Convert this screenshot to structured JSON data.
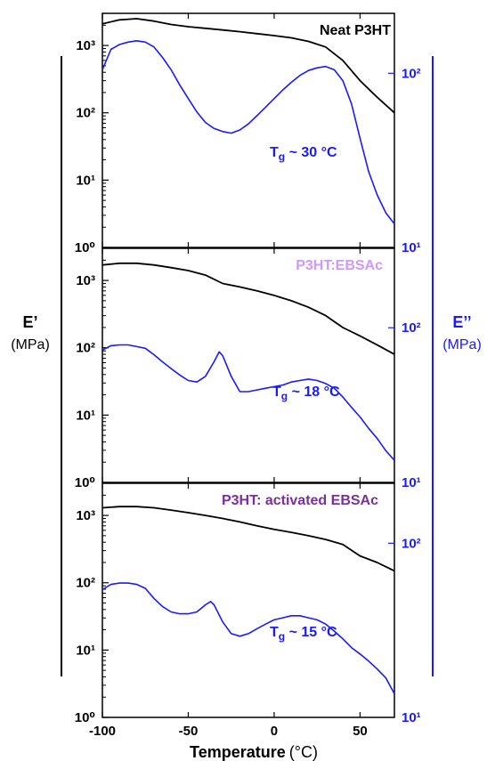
{
  "chart_data": {
    "type": "line",
    "xlabel": "Temperature",
    "xlabel_unit": "(°C)",
    "xlim": [
      -100,
      70
    ],
    "x_ticks": [
      "-100",
      "-50",
      "0",
      "50"
    ],
    "left_axis": {
      "label": "E’",
      "unit": "(MPa)",
      "scale": "log",
      "ylim": [
        1,
        3000
      ],
      "tick_labels": [
        "10⁰",
        "10¹",
        "10²",
        "10³"
      ]
    },
    "right_axis": {
      "label": "E’’",
      "unit": "(MPa)",
      "scale": "log",
      "tick_labels": [
        "10¹",
        "10²"
      ]
    },
    "colors": {
      "e_storage": "#000000",
      "e_loss": "#1a1aff",
      "title_neat": "#000000",
      "title_ebsac": "#cc99ff",
      "title_activated": "#7b2f9e"
    },
    "panels": [
      {
        "title": "Neat P3HT",
        "annotation": {
          "text": "T",
          "sub": "g",
          "rest": " ~ 30 °C"
        },
        "right_ylim": [
          10,
          200
        ],
        "series": [
          {
            "axis": "left",
            "x": [
              -100,
              -90,
              -80,
              -70,
              -60,
              -50,
              -40,
              -30,
              -20,
              -10,
              0,
              10,
              20,
              30,
              40,
              50,
              60,
              70
            ],
            "y": [
              2100,
              2400,
              2500,
              2300,
              2050,
              1900,
              1800,
              1700,
              1600,
              1500,
              1400,
              1300,
              1150,
              950,
              600,
              300,
              170,
              100
            ]
          },
          {
            "axis": "right",
            "x": [
              -100,
              -95,
              -90,
              -85,
              -80,
              -75,
              -70,
              -65,
              -60,
              -55,
              -50,
              -45,
              -40,
              -35,
              -30,
              -25,
              -20,
              -15,
              -10,
              -5,
              0,
              5,
              10,
              15,
              20,
              25,
              30,
              35,
              40,
              45,
              50,
              55,
              60,
              65,
              70
            ],
            "y": [
              105,
              140,
              150,
              155,
              158,
              155,
              145,
              125,
              105,
              85,
              70,
              58,
              50,
              46,
              44,
              43,
              45,
              49,
              55,
              62,
              70,
              79,
              88,
              97,
              104,
              108,
              110,
              105,
              90,
              65,
              40,
              25,
              18,
              14,
              12
            ]
          }
        ]
      },
      {
        "title": "P3HT:EBSAc",
        "annotation": {
          "text": "T",
          "sub": "g",
          "rest": " ~ 18 °C"
        },
        "right_ylim": [
          10,
          300
        ],
        "series": [
          {
            "axis": "left",
            "x": [
              -100,
              -90,
              -80,
              -70,
              -60,
              -50,
              -40,
              -30,
              -20,
              -10,
              0,
              10,
              20,
              30,
              40,
              50,
              60,
              70
            ],
            "y": [
              1700,
              1800,
              1800,
              1700,
              1550,
              1400,
              1200,
              900,
              800,
              700,
              600,
              500,
              400,
              300,
              200,
              150,
              110,
              80
            ]
          },
          {
            "axis": "right",
            "x": [
              -100,
              -95,
              -90,
              -85,
              -80,
              -75,
              -70,
              -65,
              -60,
              -55,
              -50,
              -45,
              -40,
              -35,
              -32,
              -30,
              -25,
              -20,
              -15,
              -10,
              -5,
              0,
              5,
              10,
              15,
              20,
              25,
              30,
              35,
              40,
              45,
              50,
              55,
              60,
              65,
              70
            ],
            "y": [
              70,
              75,
              76,
              76,
              74,
              72,
              65,
              58,
              52,
              47,
              43,
              42,
              46,
              58,
              68,
              64,
              46,
              36,
              36,
              37,
              38,
              39,
              40,
              42,
              43,
              44,
              43,
              41,
              38,
              33,
              28,
              24,
              20,
              17,
              14,
              12
            ]
          }
        ]
      },
      {
        "title": "P3HT: activated EBSAc",
        "annotation": {
          "text": "T",
          "sub": "g",
          "rest": " ~ 15 °C"
        },
        "right_ylim": [
          10,
          200
        ],
        "series": [
          {
            "axis": "left",
            "x": [
              -100,
              -90,
              -80,
              -70,
              -60,
              -50,
              -40,
              -30,
              -20,
              -10,
              0,
              10,
              20,
              30,
              40,
              50,
              60,
              70
            ],
            "y": [
              1300,
              1350,
              1350,
              1300,
              1200,
              1100,
              1000,
              900,
              800,
              700,
              620,
              560,
              500,
              440,
              370,
              250,
              200,
              150
            ]
          },
          {
            "axis": "right",
            "x": [
              -100,
              -95,
              -90,
              -85,
              -80,
              -75,
              -70,
              -65,
              -60,
              -55,
              -50,
              -45,
              -40,
              -37,
              -35,
              -30,
              -25,
              -20,
              -15,
              -10,
              -5,
              0,
              5,
              10,
              15,
              20,
              25,
              30,
              35,
              40,
              45,
              50,
              55,
              60,
              65,
              70
            ],
            "y": [
              52,
              56,
              57,
              57,
              56,
              53,
              46,
              41,
              38,
              37,
              37,
              38,
              42,
              44,
              42,
              33,
              28,
              27,
              28,
              30,
              32,
              34,
              35,
              36,
              36,
              35,
              34,
              32,
              29,
              26,
              23,
              21,
              19,
              17,
              15,
              12
            ]
          }
        ]
      }
    ]
  }
}
